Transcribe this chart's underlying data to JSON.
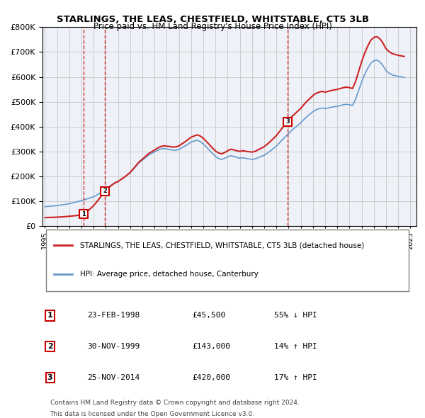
{
  "title": "STARLINGS, THE LEAS, CHESTFIELD, WHITSTABLE, CT5 3LB",
  "subtitle": "Price paid vs. HM Land Registry's House Price Index (HPI)",
  "legend_label1": "STARLINGS, THE LEAS, CHESTFIELD, WHITSTABLE, CT5 3LB (detached house)",
  "legend_label2": "HPI: Average price, detached house, Canterbury",
  "transactions": [
    {
      "num": 1,
      "date": "23-FEB-1998",
      "price": 45500,
      "pct": "55%",
      "dir": "↓",
      "year": 1998.15
    },
    {
      "num": 2,
      "date": "30-NOV-1999",
      "price": 143000,
      "pct": "14%",
      "dir": "↑",
      "year": 1999.92
    },
    {
      "num": 3,
      "date": "25-NOV-2014",
      "price": 420000,
      "pct": "17%",
      "dir": "↑",
      "year": 2014.92
    }
  ],
  "footnote1": "Contains HM Land Registry data © Crown copyright and database right 2024.",
  "footnote2": "This data is licensed under the Open Government Licence v3.0.",
  "ylim": [
    0,
    800000
  ],
  "xlim_start": 1995,
  "xlim_end": 2025.5,
  "hpi_color": "#6699cc",
  "price_color": "#cc2222",
  "marker_color": "#cc0000",
  "grid_color": "#cccccc",
  "background_color": "#ffffff",
  "plot_bg_color": "#eef2f8",
  "hpi_data_x": [
    1995.0,
    1995.25,
    1995.5,
    1995.75,
    1996.0,
    1996.25,
    1996.5,
    1996.75,
    1997.0,
    1997.25,
    1997.5,
    1997.75,
    1998.0,
    1998.25,
    1998.5,
    1998.75,
    1999.0,
    1999.25,
    1999.5,
    1999.75,
    2000.0,
    2000.25,
    2000.5,
    2000.75,
    2001.0,
    2001.25,
    2001.5,
    2001.75,
    2002.0,
    2002.25,
    2002.5,
    2002.75,
    2003.0,
    2003.25,
    2003.5,
    2003.75,
    2004.0,
    2004.25,
    2004.5,
    2004.75,
    2005.0,
    2005.25,
    2005.5,
    2005.75,
    2006.0,
    2006.25,
    2006.5,
    2006.75,
    2007.0,
    2007.25,
    2007.5,
    2007.75,
    2008.0,
    2008.25,
    2008.5,
    2008.75,
    2009.0,
    2009.25,
    2009.5,
    2009.75,
    2010.0,
    2010.25,
    2010.5,
    2010.75,
    2011.0,
    2011.25,
    2011.5,
    2011.75,
    2012.0,
    2012.25,
    2012.5,
    2012.75,
    2013.0,
    2013.25,
    2013.5,
    2013.75,
    2014.0,
    2014.25,
    2014.5,
    2014.75,
    2015.0,
    2015.25,
    2015.5,
    2015.75,
    2016.0,
    2016.25,
    2016.5,
    2016.75,
    2017.0,
    2017.25,
    2017.5,
    2017.75,
    2018.0,
    2018.25,
    2018.5,
    2018.75,
    2019.0,
    2019.25,
    2019.5,
    2019.75,
    2020.0,
    2020.25,
    2020.5,
    2020.75,
    2021.0,
    2021.25,
    2021.5,
    2021.75,
    2022.0,
    2022.25,
    2022.5,
    2022.75,
    2023.0,
    2023.25,
    2023.5,
    2023.75,
    2024.0,
    2024.25,
    2024.5
  ],
  "hpi_data_y": [
    78000,
    79000,
    80000,
    81000,
    82000,
    84000,
    86000,
    88000,
    90000,
    93000,
    96000,
    99000,
    102000,
    106000,
    110000,
    114000,
    118000,
    125000,
    132000,
    140000,
    148000,
    157000,
    167000,
    175000,
    180000,
    188000,
    196000,
    205000,
    215000,
    228000,
    242000,
    256000,
    265000,
    275000,
    285000,
    292000,
    298000,
    305000,
    310000,
    312000,
    310000,
    308000,
    305000,
    305000,
    308000,
    315000,
    322000,
    330000,
    338000,
    342000,
    345000,
    340000,
    330000,
    318000,
    305000,
    292000,
    280000,
    272000,
    268000,
    272000,
    278000,
    283000,
    280000,
    276000,
    273000,
    275000,
    272000,
    270000,
    268000,
    270000,
    275000,
    280000,
    285000,
    293000,
    302000,
    312000,
    322000,
    335000,
    348000,
    360000,
    372000,
    385000,
    395000,
    405000,
    415000,
    428000,
    440000,
    450000,
    460000,
    468000,
    472000,
    475000,
    472000,
    475000,
    478000,
    480000,
    482000,
    485000,
    488000,
    490000,
    488000,
    485000,
    510000,
    545000,
    580000,
    610000,
    635000,
    655000,
    665000,
    668000,
    660000,
    645000,
    625000,
    615000,
    608000,
    605000,
    602000,
    600000,
    598000
  ],
  "price_data_x": [
    1998.15,
    1999.92,
    2014.92
  ],
  "price_data_y": [
    45500,
    143000,
    420000
  ],
  "xticks": [
    1995,
    1996,
    1997,
    1998,
    1999,
    2000,
    2001,
    2002,
    2003,
    2004,
    2005,
    2006,
    2007,
    2008,
    2009,
    2010,
    2011,
    2012,
    2013,
    2014,
    2015,
    2016,
    2017,
    2018,
    2019,
    2020,
    2021,
    2022,
    2023,
    2024,
    2025
  ],
  "yticks": [
    0,
    100000,
    200000,
    300000,
    400000,
    500000,
    600000,
    700000,
    800000
  ]
}
